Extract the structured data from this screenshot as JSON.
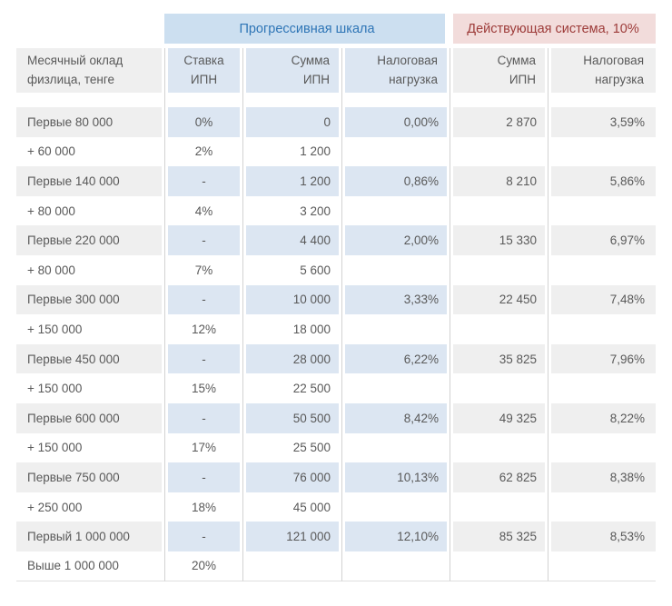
{
  "colors": {
    "progressive_bg": "#CCDFF0",
    "progressive_text": "#2E75B6",
    "current_bg": "#F2DCDB",
    "current_text": "#9D3B39",
    "shade_blue": "#DCE6F2",
    "shade_gray": "#EFEFEF",
    "grid_line": "#D2D2D2",
    "text_color": "#595959"
  },
  "chart_data": {
    "type": "table",
    "group_headers": [
      {
        "label": "Прогрессивная шкала",
        "columns": 3
      },
      {
        "label": "Действующая система, 10%",
        "columns": 2
      }
    ],
    "column_headers": [
      "Месячный оклад\nфизлица, тенге",
      "Ставка\nИПН",
      "Сумма\nИПН",
      "Налоговая\nнагрузка",
      "Сумма\nИПН",
      "Налоговая\nнагрузка"
    ],
    "rows": [
      {
        "salary": "Первые 80 000",
        "rate": "0%",
        "ipn_progressive": "0",
        "burden_progressive": "0,00%",
        "ipn_current": "2 870",
        "burden_current": "3,59%",
        "shaded": true
      },
      {
        "salary": "+ 60 000",
        "rate": "2%",
        "ipn_progressive": "1 200",
        "burden_progressive": "",
        "ipn_current": "",
        "burden_current": "",
        "shaded": false
      },
      {
        "salary": "Первые 140 000",
        "rate": "-",
        "ipn_progressive": "1 200",
        "burden_progressive": "0,86%",
        "ipn_current": "8 210",
        "burden_current": "5,86%",
        "shaded": true
      },
      {
        "salary": "+ 80 000",
        "rate": "4%",
        "ipn_progressive": "3 200",
        "burden_progressive": "",
        "ipn_current": "",
        "burden_current": "",
        "shaded": false
      },
      {
        "salary": "Первые 220 000",
        "rate": "-",
        "ipn_progressive": "4 400",
        "burden_progressive": "2,00%",
        "ipn_current": "15 330",
        "burden_current": "6,97%",
        "shaded": true
      },
      {
        "salary": "+ 80 000",
        "rate": "7%",
        "ipn_progressive": "5 600",
        "burden_progressive": "",
        "ipn_current": "",
        "burden_current": "",
        "shaded": false
      },
      {
        "salary": "Первые 300 000",
        "rate": "-",
        "ipn_progressive": "10 000",
        "burden_progressive": "3,33%",
        "ipn_current": "22 450",
        "burden_current": "7,48%",
        "shaded": true
      },
      {
        "salary": "+ 150 000",
        "rate": "12%",
        "ipn_progressive": "18 000",
        "burden_progressive": "",
        "ipn_current": "",
        "burden_current": "",
        "shaded": false
      },
      {
        "salary": "Первые 450 000",
        "rate": "-",
        "ipn_progressive": "28 000",
        "burden_progressive": "6,22%",
        "ipn_current": "35 825",
        "burden_current": "7,96%",
        "shaded": true
      },
      {
        "salary": "+ 150 000",
        "rate": "15%",
        "ipn_progressive": "22 500",
        "burden_progressive": "",
        "ipn_current": "",
        "burden_current": "",
        "shaded": false
      },
      {
        "salary": "Первые 600 000",
        "rate": "-",
        "ipn_progressive": "50 500",
        "burden_progressive": "8,42%",
        "ipn_current": "49 325",
        "burden_current": "8,22%",
        "shaded": true
      },
      {
        "salary": "+ 150 000",
        "rate": "17%",
        "ipn_progressive": "25 500",
        "burden_progressive": "",
        "ipn_current": "",
        "burden_current": "",
        "shaded": false
      },
      {
        "salary": "Первые 750 000",
        "rate": "-",
        "ipn_progressive": "76 000",
        "burden_progressive": "10,13%",
        "ipn_current": "62 825",
        "burden_current": "8,38%",
        "shaded": true
      },
      {
        "salary": "+ 250 000",
        "rate": "18%",
        "ipn_progressive": "45 000",
        "burden_progressive": "",
        "ipn_current": "",
        "burden_current": "",
        "shaded": false
      },
      {
        "salary": "Первый 1 000 000",
        "rate": "-",
        "ipn_progressive": "121 000",
        "burden_progressive": "12,10%",
        "ipn_current": "85 325",
        "burden_current": "8,53%",
        "shaded": true
      },
      {
        "salary": "Выше 1 000 000",
        "rate": "20%",
        "ipn_progressive": "",
        "burden_progressive": "",
        "ipn_current": "",
        "burden_current": "",
        "shaded": false
      }
    ]
  }
}
